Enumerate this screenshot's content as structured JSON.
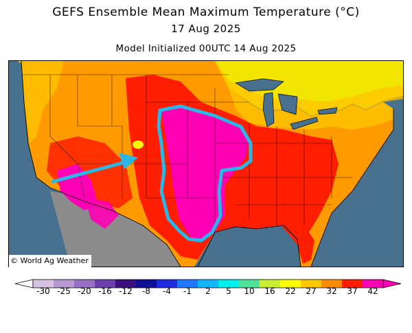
{
  "title": {
    "main": "GEFS Ensemble Mean Maximum Temperature (°C)",
    "date": "17 Aug 2025",
    "init": "Model Initialized 00UTC 14 Aug 2025"
  },
  "credit": "© World Ag Weather",
  "colors": {
    "ocean": "#48708f",
    "land_outside": "#8c8c8c",
    "annotation": "#2ab6e6"
  },
  "colorbar": {
    "labels": [
      "-30",
      "-25",
      "-20",
      "-16",
      "-12",
      "-8",
      "-4",
      "-1",
      "2",
      "5",
      "10",
      "16",
      "22",
      "27",
      "32",
      "37",
      "42"
    ],
    "colors": [
      "#d8c2e4",
      "#b79ad2",
      "#9670c2",
      "#6c3faa",
      "#3b0f7c",
      "#0e0e96",
      "#1e2ae0",
      "#1f78ff",
      "#13b6ff",
      "#00f0f0",
      "#4fe39e",
      "#c6ef33",
      "#ffff00",
      "#ffc800",
      "#ff8c00",
      "#ff1e00",
      "#ff00b4"
    ],
    "extends": "both"
  },
  "annotations": [
    "arrow",
    "outline"
  ]
}
